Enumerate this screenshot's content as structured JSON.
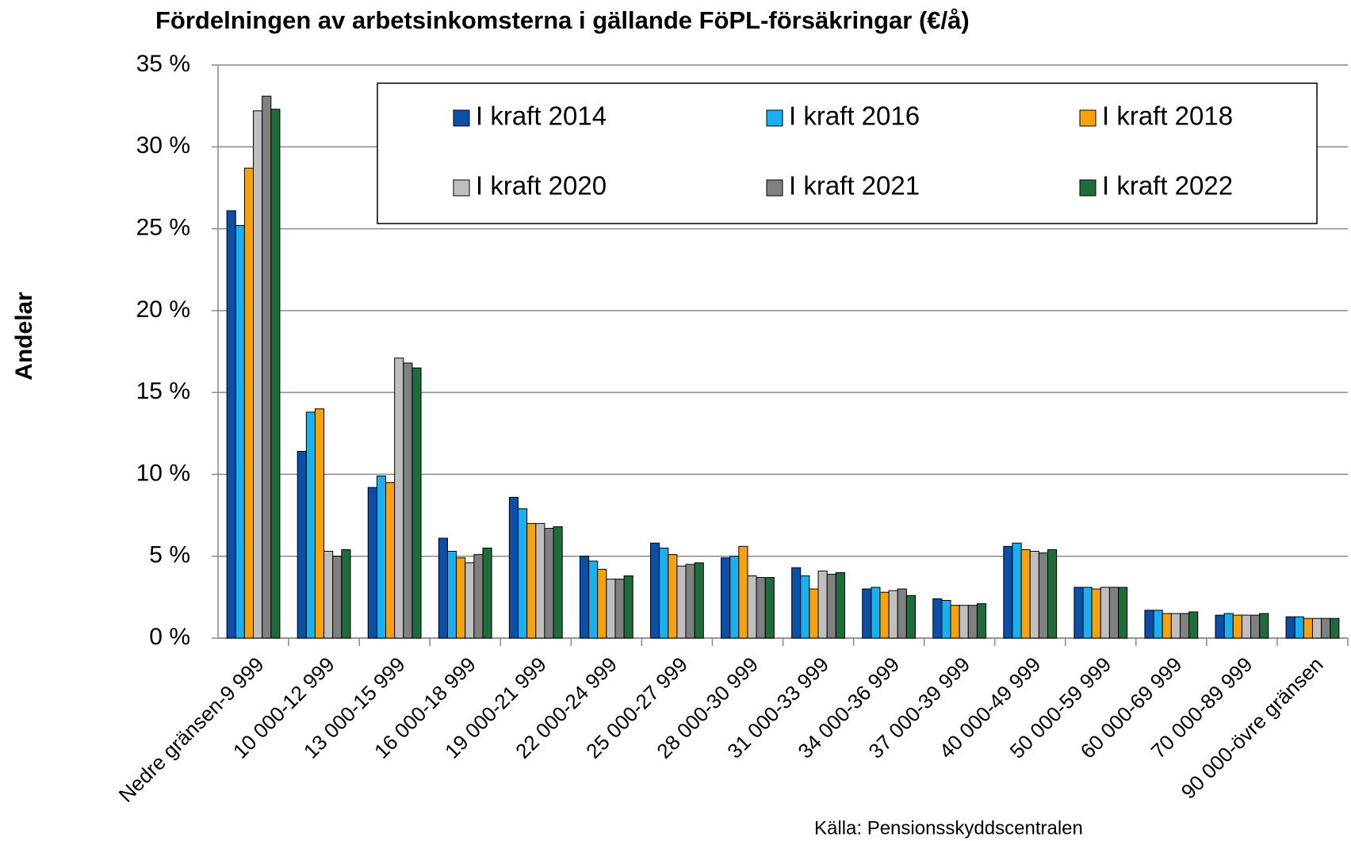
{
  "chart_data": {
    "type": "bar",
    "title": "Fördelningen av arbetsinkomsterna i  gällande FöPL-försäkringar  (€/å)",
    "y_label": "Andelar",
    "source": "Källa: Pensionsskyddscentralen",
    "categories": [
      "Nedre gränsen-9 999",
      "10 000-12 999",
      "13 000-15 999",
      "16 000-18 999",
      "19 000-21 999",
      "22 000-24 999",
      "25 000-27 999",
      "28 000-30 999",
      "31 000-33 999",
      "34 000-36 999",
      "37 000-39 999",
      "40 000-49 999",
      "50 000-59 999",
      "60 000-69 999",
      "70 000-89 999",
      "90 000-övre gränsen"
    ],
    "series": [
      {
        "name": "I kraft 2014",
        "color": "#0b4fa8",
        "values": [
          26.1,
          11.4,
          9.2,
          6.1,
          8.6,
          5.0,
          5.8,
          4.9,
          4.3,
          3.0,
          2.4,
          5.6,
          3.1,
          1.7,
          1.4,
          1.3
        ]
      },
      {
        "name": "I kraft 2016",
        "color": "#1ab0f0",
        "values": [
          25.2,
          13.8,
          9.9,
          5.3,
          7.9,
          4.7,
          5.5,
          5.0,
          3.8,
          3.1,
          2.3,
          5.8,
          3.1,
          1.7,
          1.5,
          1.3
        ]
      },
      {
        "name": "I kraft 2018",
        "color": "#f7a10d",
        "values": [
          28.7,
          14.0,
          9.5,
          4.9,
          7.0,
          4.2,
          5.1,
          5.6,
          3.0,
          2.8,
          2.0,
          5.4,
          3.0,
          1.5,
          1.4,
          1.2
        ]
      },
      {
        "name": "I kraft 2020",
        "color": "#bfbfbf",
        "values": [
          32.2,
          5.3,
          17.1,
          4.6,
          7.0,
          3.6,
          4.4,
          3.8,
          4.1,
          2.9,
          2.0,
          5.3,
          3.1,
          1.5,
          1.4,
          1.2
        ]
      },
      {
        "name": "I kraft 2021",
        "color": "#808080",
        "values": [
          33.1,
          5.0,
          16.8,
          5.1,
          6.7,
          3.6,
          4.5,
          3.7,
          3.9,
          3.0,
          2.0,
          5.2,
          3.1,
          1.5,
          1.4,
          1.2
        ]
      },
      {
        "name": "I kraft 2022",
        "color": "#1f6b3a",
        "values": [
          32.3,
          5.4,
          16.5,
          5.5,
          6.8,
          3.8,
          4.6,
          3.7,
          4.0,
          2.6,
          2.1,
          5.4,
          3.1,
          1.6,
          1.5,
          1.2
        ]
      }
    ],
    "ylim": [
      0,
      35
    ],
    "yticks": [
      {
        "value": 0,
        "label": "0 %"
      },
      {
        "value": 5,
        "label": "5 %"
      },
      {
        "value": 10,
        "label": "10 %"
      },
      {
        "value": 15,
        "label": "15 %"
      },
      {
        "value": 20,
        "label": "20 %"
      },
      {
        "value": 25,
        "label": "25 %"
      },
      {
        "value": 30,
        "label": "30 %"
      },
      {
        "value": 35,
        "label": "35 %"
      }
    ],
    "grid": true,
    "legend": "top"
  }
}
